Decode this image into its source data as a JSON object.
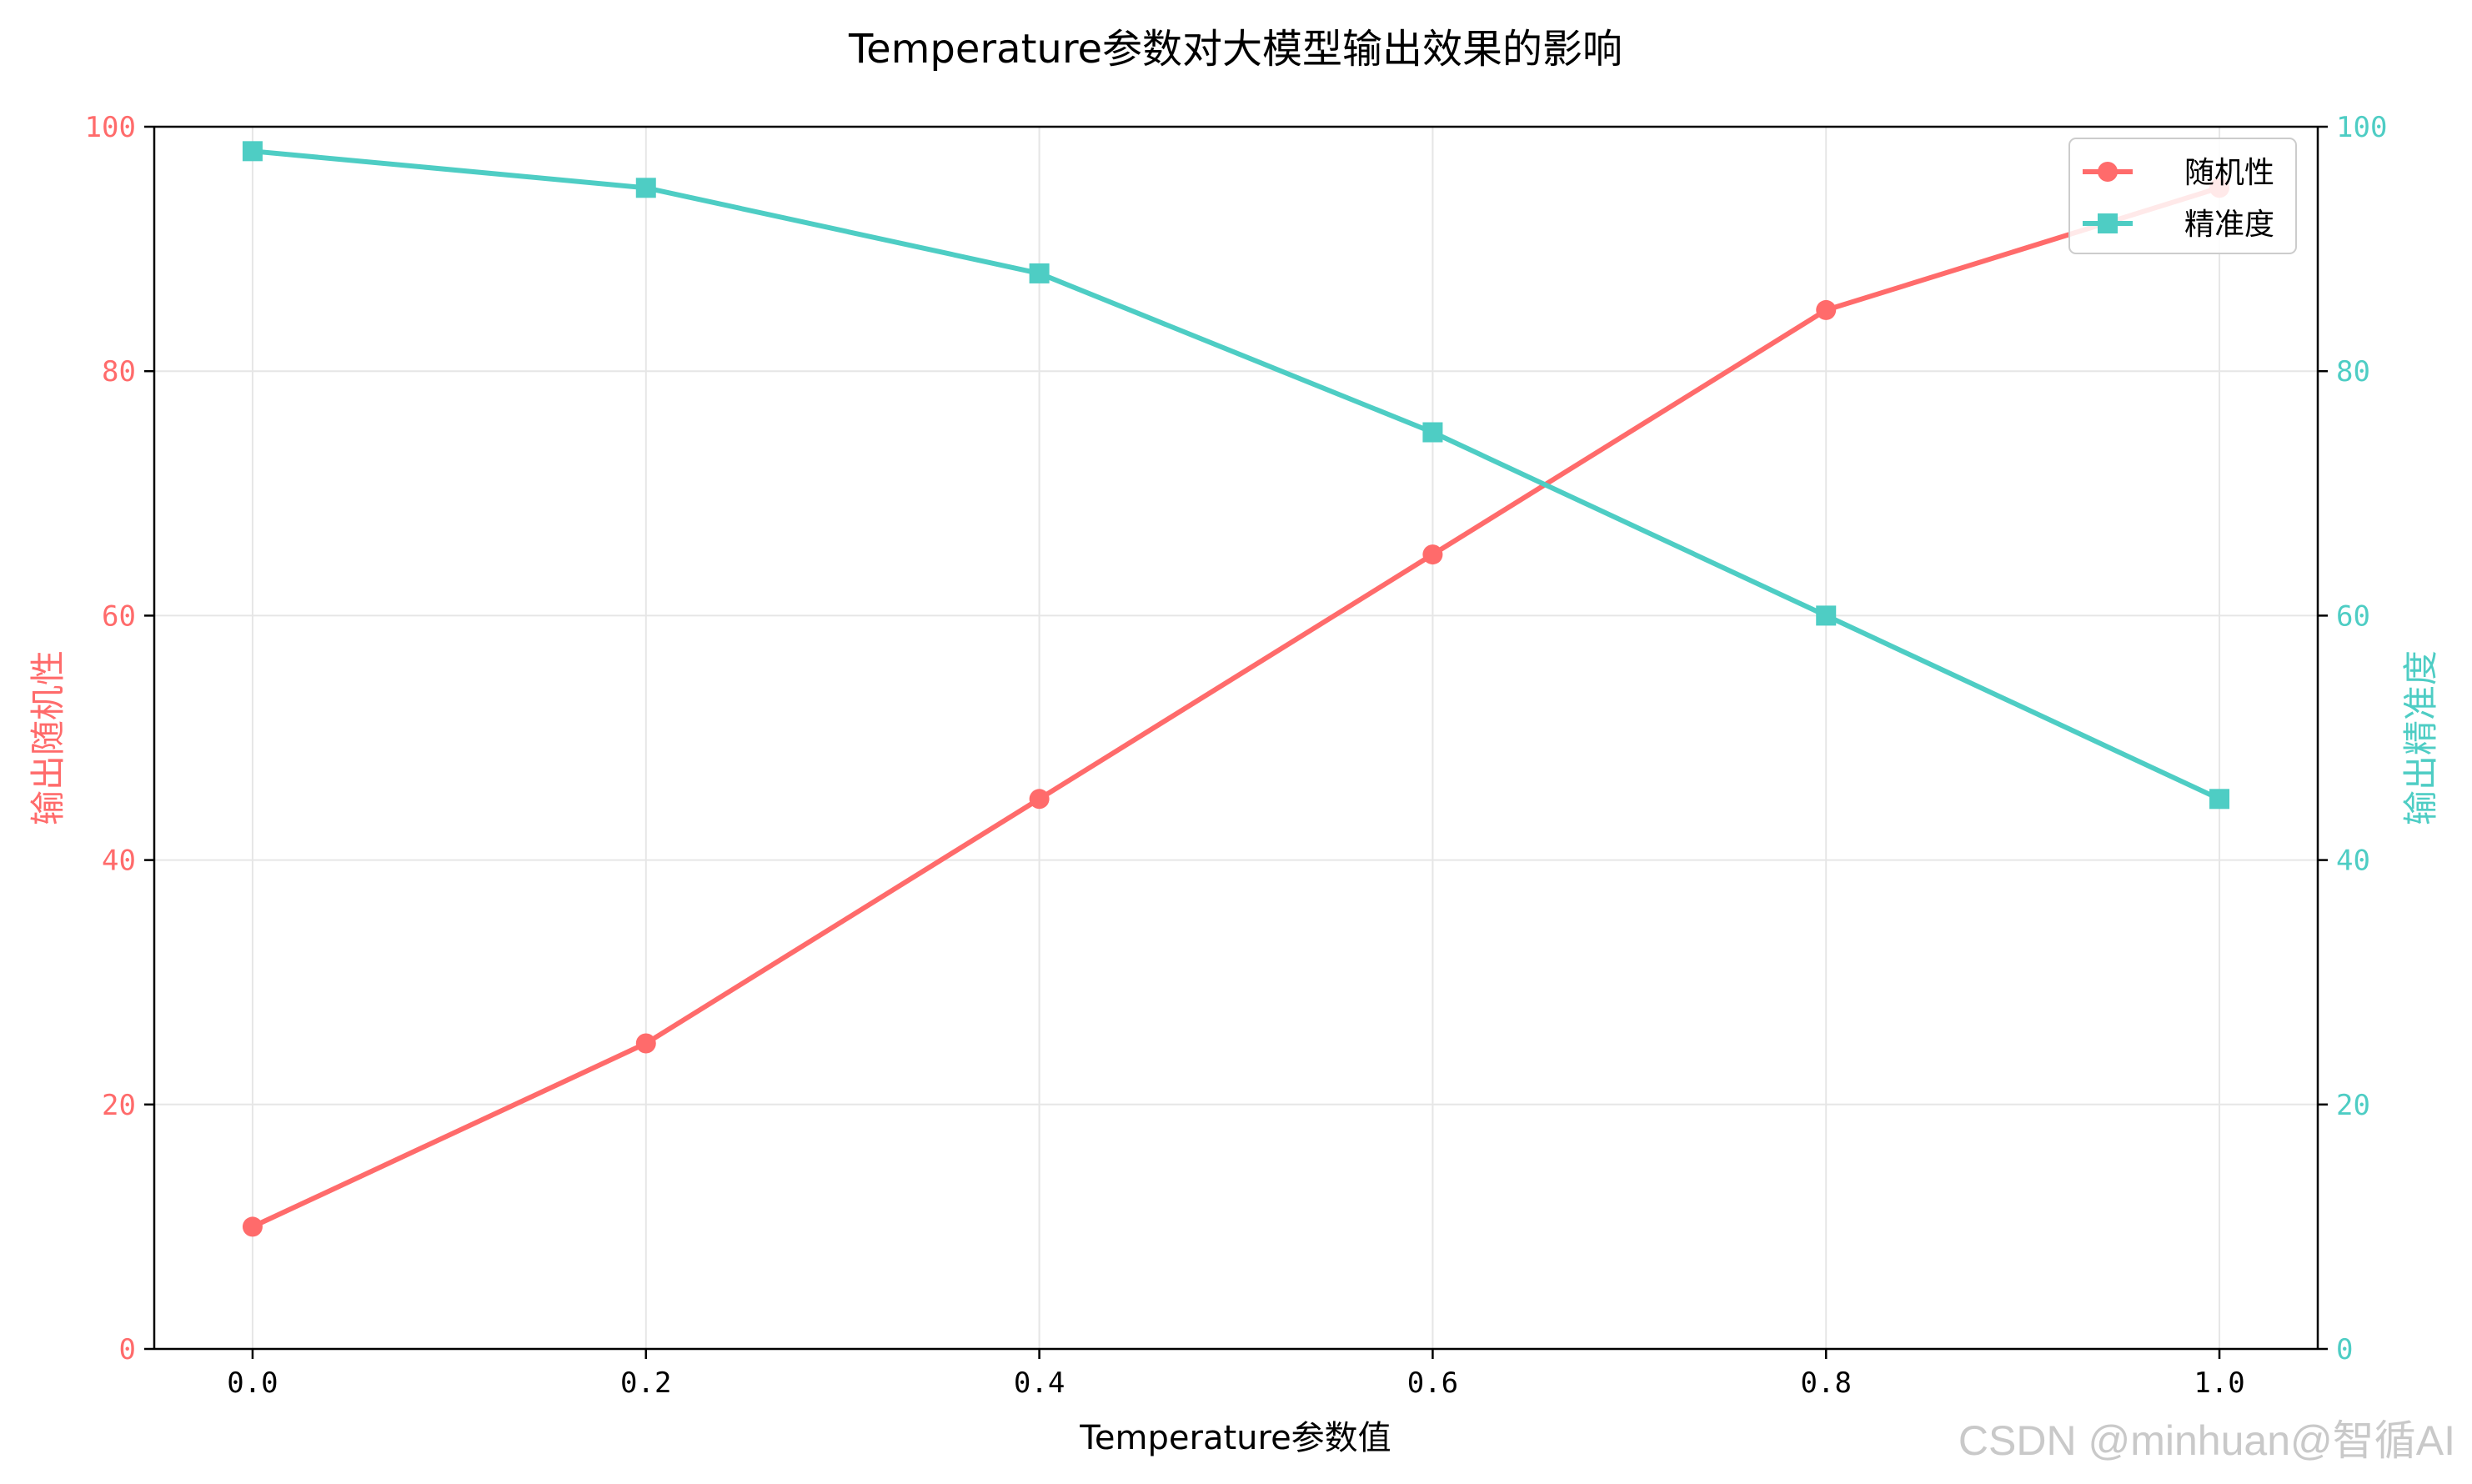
{
  "chart_data": {
    "type": "line",
    "title": "Temperature参数对大模型输出效果的影响",
    "xlabel": "Temperature参数值",
    "ylabel_left": "输出随机性",
    "ylabel_right": "输出精准度",
    "x": [
      0.0,
      0.2,
      0.4,
      0.6,
      0.8,
      1.0
    ],
    "x_tick_labels": [
      "0.0",
      "0.2",
      "0.4",
      "0.6",
      "0.8",
      "1.0"
    ],
    "xlim": [
      -0.05,
      1.05
    ],
    "ylim_left": [
      0,
      100
    ],
    "ylim_right": [
      0,
      100
    ],
    "y_ticks": [
      0,
      20,
      40,
      60,
      80,
      100
    ],
    "y_tick_labels": [
      "0",
      "20",
      "40",
      "60",
      "80",
      "100"
    ],
    "grid": true,
    "legend_position": "top-right",
    "series": [
      {
        "name": "随机性",
        "axis": "left",
        "marker": "circle",
        "color": "#ff6b6b",
        "values": [
          10,
          25,
          45,
          65,
          85,
          95
        ]
      },
      {
        "name": "精准度",
        "axis": "right",
        "marker": "square",
        "color": "#4ecdc4",
        "values": [
          98,
          95,
          88,
          75,
          60,
          45
        ]
      }
    ]
  },
  "colors": {
    "left_axis": "#ff6b6b",
    "right_axis": "#4ecdc4",
    "grid": "#e6e6e6",
    "frame": "#000000"
  },
  "watermark": "CSDN @minhuan@智循AI"
}
